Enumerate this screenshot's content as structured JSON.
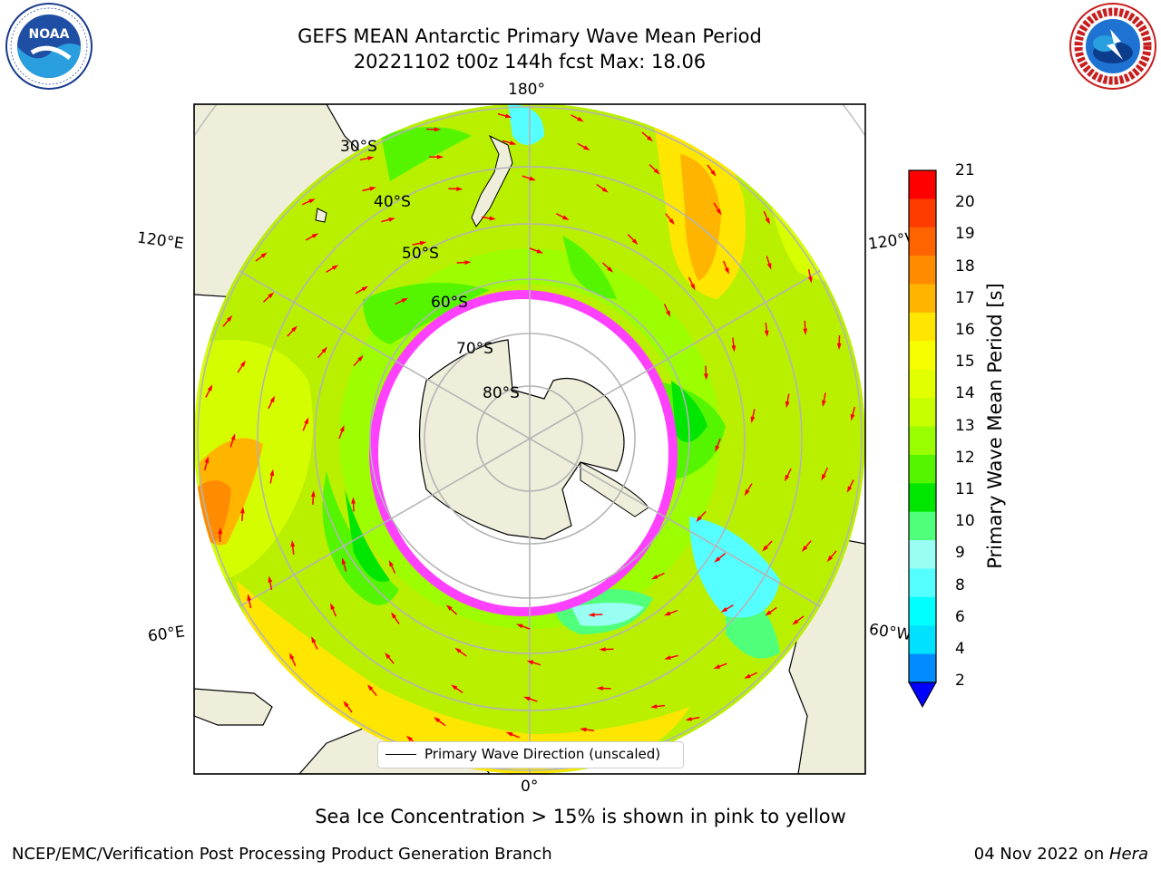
{
  "header": {
    "title_line1": "GEFS MEAN Antarctic Primary Wave Mean Period",
    "title_line2": "20221102 t00z 144h fcst   Max: 18.06"
  },
  "logos": {
    "noaa_text": "NOAA",
    "noaa_ring": "NATIONAL OCEANIC AND ATMOSPHERIC ADMINISTRATION · U.S. DEPARTMENT OF COMMERCE",
    "nws_ring": "NATIONAL WEATHER SERVICE"
  },
  "map": {
    "projection": "south-polar-stereographic",
    "lon_labels": {
      "top": "180°",
      "bottom": "0°",
      "left_upper": "120°E",
      "left_lower": "60°E",
      "right_upper": "120°W",
      "right_lower": "60°W"
    },
    "lat_labels": [
      "30°S",
      "40°S",
      "50°S",
      "60°S",
      "70°S",
      "80°S"
    ],
    "legend_label": "Primary Wave Direction (unscaled)",
    "colors": {
      "ocean_base": "#b9f000",
      "land": "#efeedb",
      "ice": "#ff40ff",
      "arrow": "#ff0000",
      "grid": "#b4b4b4"
    }
  },
  "colorbar": {
    "label": "Primary Wave Mean Period [s]",
    "ticks": [
      "21",
      "20",
      "19",
      "18",
      "17",
      "16",
      "15",
      "14",
      "13",
      "12",
      "11",
      "10",
      "9",
      "8",
      "6",
      "4",
      "2"
    ],
    "colors": [
      "#ff0000",
      "#ff3c00",
      "#ff6400",
      "#ff8c00",
      "#ffb400",
      "#ffe600",
      "#f5ff00",
      "#e1ff00",
      "#c8ff00",
      "#99ff00",
      "#55f500",
      "#00e600",
      "#50ff7a",
      "#99fff2",
      "#55ffff",
      "#00ffff",
      "#00e1ff",
      "#008cff"
    ],
    "extend_color": "#0000ff"
  },
  "notes": {
    "sea_ice": "Sea Ice Concentration > 15% is shown in pink to yellow"
  },
  "footer": {
    "left": "NCEP/EMC/Verification Post Processing Product Generation Branch",
    "date": "04 Nov 2022 on ",
    "machine": "Hera"
  }
}
